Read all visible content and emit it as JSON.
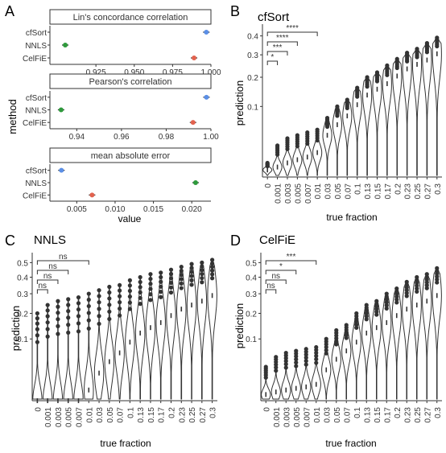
{
  "panels": {
    "A": {
      "letter": "A",
      "ylabel": "method",
      "xlabel": "value",
      "methods": [
        "cfSort",
        "NNLS",
        "CelFiE"
      ],
      "colors": {
        "cfSort": "#5b8fe6",
        "NNLS": "#2e9a3c",
        "CelFiE": "#e2624e"
      },
      "facets": [
        {
          "title": "Lin's concordance correlation",
          "xlim": [
            0.895,
            1.0
          ],
          "ticks": [
            0.925,
            0.95,
            0.975,
            1.0
          ],
          "tick_labels": [
            "0.925",
            "0.950",
            "0.975",
            "1.000"
          ],
          "values": {
            "cfSort": 0.997,
            "NNLS": 0.905,
            "CelFiE": 0.989
          }
        },
        {
          "title": "Pearson's correlation",
          "xlim": [
            0.928,
            1.0
          ],
          "ticks": [
            0.94,
            0.96,
            0.98,
            1.0
          ],
          "tick_labels": [
            "0.94",
            "0.96",
            "0.98",
            "1.00"
          ],
          "values": {
            "cfSort": 0.998,
            "NNLS": 0.933,
            "CelFiE": 0.992
          }
        },
        {
          "title": "mean absolute error",
          "xlim": [
            0.0015,
            0.0225
          ],
          "ticks": [
            0.005,
            0.01,
            0.015,
            0.02
          ],
          "tick_labels": [
            "0.005",
            "0.010",
            "0.015",
            "0.020"
          ],
          "values": {
            "cfSort": 0.003,
            "NNLS": 0.0205,
            "CelFiE": 0.007
          }
        }
      ]
    },
    "B": {
      "letter": "B",
      "title": "cfSort",
      "ylabel": "prediction",
      "xlabel": "true fraction",
      "yticks": [
        "0.4",
        "0.3",
        "0.2",
        "0.1"
      ],
      "sig": [
        "*",
        "***",
        "****",
        "****"
      ]
    },
    "C": {
      "letter": "C",
      "title": "NNLS",
      "ylabel": "prediction",
      "xlabel": "true fraction",
      "yticks": [
        "0.5",
        "0.4",
        "0.3",
        "0.2",
        "0.1"
      ],
      "sig": [
        "ns",
        "ns",
        "ns",
        "ns"
      ]
    },
    "D": {
      "letter": "D",
      "title": "CelFiE",
      "ylabel": "prediction",
      "xlabel": "true fraction",
      "yticks": [
        "0.5",
        "0.4",
        "0.3",
        "0.2",
        "0.1"
      ],
      "sig": [
        "ns",
        "ns",
        "*",
        "***"
      ]
    }
  },
  "chart_data": [
    {
      "type": "scatter",
      "title": "Lin's concordance correlation",
      "xlabel": "value",
      "ylabel": "method",
      "categories": [
        "cfSort",
        "NNLS",
        "CelFiE"
      ],
      "values": [
        0.997,
        0.905,
        0.989
      ],
      "xlim": [
        0.895,
        1.0
      ]
    },
    {
      "type": "scatter",
      "title": "Pearson's correlation",
      "xlabel": "value",
      "ylabel": "method",
      "categories": [
        "cfSort",
        "NNLS",
        "CelFiE"
      ],
      "values": [
        0.998,
        0.933,
        0.992
      ],
      "xlim": [
        0.928,
        1.0
      ]
    },
    {
      "type": "scatter",
      "title": "mean absolute error",
      "xlabel": "value",
      "ylabel": "method",
      "categories": [
        "cfSort",
        "NNLS",
        "CelFiE"
      ],
      "values": [
        0.003,
        0.0205,
        0.007
      ],
      "xlim": [
        0.0015,
        0.0225
      ]
    },
    {
      "type": "violin",
      "title": "cfSort",
      "xlabel": "true fraction",
      "ylabel": "prediction",
      "scale": "sqrt",
      "ylim": [
        0,
        0.45
      ],
      "categories": [
        "0",
        "0.001",
        "0.003",
        "0.005",
        "0.007",
        "0.01",
        "0.03",
        "0.05",
        "0.07",
        "0.1",
        "0.13",
        "0.15",
        "0.17",
        "0.2",
        "0.23",
        "0.25",
        "0.27",
        "0.3"
      ],
      "medians": [
        0.001,
        0.002,
        0.004,
        0.006,
        0.008,
        0.012,
        0.035,
        0.055,
        0.075,
        0.105,
        0.135,
        0.155,
        0.175,
        0.205,
        0.235,
        0.255,
        0.275,
        0.305
      ],
      "max": [
        0.004,
        0.02,
        0.03,
        0.035,
        0.04,
        0.045,
        0.07,
        0.1,
        0.12,
        0.16,
        0.2,
        0.22,
        0.25,
        0.28,
        0.31,
        0.33,
        0.36,
        0.39
      ],
      "comparisons": [
        {
          "groups": [
            "0",
            "0.001"
          ],
          "label": "*"
        },
        {
          "groups": [
            "0",
            "0.003"
          ],
          "label": "***"
        },
        {
          "groups": [
            "0",
            "0.005"
          ],
          "label": "****"
        },
        {
          "groups": [
            "0",
            "0.01"
          ],
          "label": "****"
        }
      ]
    },
    {
      "type": "violin",
      "title": "NNLS",
      "xlabel": "true fraction",
      "ylabel": "prediction",
      "scale": "sqrt",
      "ylim": [
        0,
        0.55
      ],
      "categories": [
        "0",
        "0.001",
        "0.003",
        "0.005",
        "0.007",
        "0.01",
        "0.03",
        "0.05",
        "0.07",
        "0.1",
        "0.13",
        "0.15",
        "0.17",
        "0.2",
        "0.23",
        "0.25",
        "0.27",
        "0.3"
      ],
      "medians": [
        0,
        0,
        0,
        0,
        0,
        0.003,
        0.02,
        0.04,
        0.06,
        0.09,
        0.12,
        0.14,
        0.16,
        0.19,
        0.22,
        0.24,
        0.26,
        0.29
      ],
      "max": [
        0.2,
        0.24,
        0.26,
        0.27,
        0.28,
        0.3,
        0.32,
        0.34,
        0.35,
        0.38,
        0.4,
        0.42,
        0.43,
        0.45,
        0.47,
        0.49,
        0.5,
        0.52
      ],
      "comparisons": [
        {
          "groups": [
            "0",
            "0.001"
          ],
          "label": "ns"
        },
        {
          "groups": [
            "0",
            "0.003"
          ],
          "label": "ns"
        },
        {
          "groups": [
            "0",
            "0.005"
          ],
          "label": "ns"
        },
        {
          "groups": [
            "0",
            "0.01"
          ],
          "label": "ns"
        }
      ]
    },
    {
      "type": "violin",
      "title": "CelFiE",
      "xlabel": "true fraction",
      "ylabel": "prediction",
      "scale": "sqrt",
      "ylim": [
        0,
        0.55
      ],
      "categories": [
        "0",
        "0.001",
        "0.003",
        "0.005",
        "0.007",
        "0.01",
        "0.03",
        "0.05",
        "0.07",
        "0.1",
        "0.13",
        "0.15",
        "0.17",
        "0.2",
        "0.23",
        "0.25",
        "0.27",
        "0.3"
      ],
      "medians": [
        0.001,
        0.002,
        0.003,
        0.004,
        0.005,
        0.007,
        0.025,
        0.045,
        0.065,
        0.09,
        0.12,
        0.14,
        0.16,
        0.19,
        0.22,
        0.24,
        0.26,
        0.29
      ],
      "max": [
        0.03,
        0.05,
        0.06,
        0.065,
        0.07,
        0.075,
        0.1,
        0.13,
        0.15,
        0.2,
        0.24,
        0.26,
        0.3,
        0.33,
        0.37,
        0.4,
        0.42,
        0.46
      ],
      "comparisons": [
        {
          "groups": [
            "0",
            "0.001"
          ],
          "label": "ns"
        },
        {
          "groups": [
            "0",
            "0.003"
          ],
          "label": "ns"
        },
        {
          "groups": [
            "0",
            "0.005"
          ],
          "label": "*"
        },
        {
          "groups": [
            "0",
            "0.01"
          ],
          "label": "***"
        }
      ]
    }
  ]
}
